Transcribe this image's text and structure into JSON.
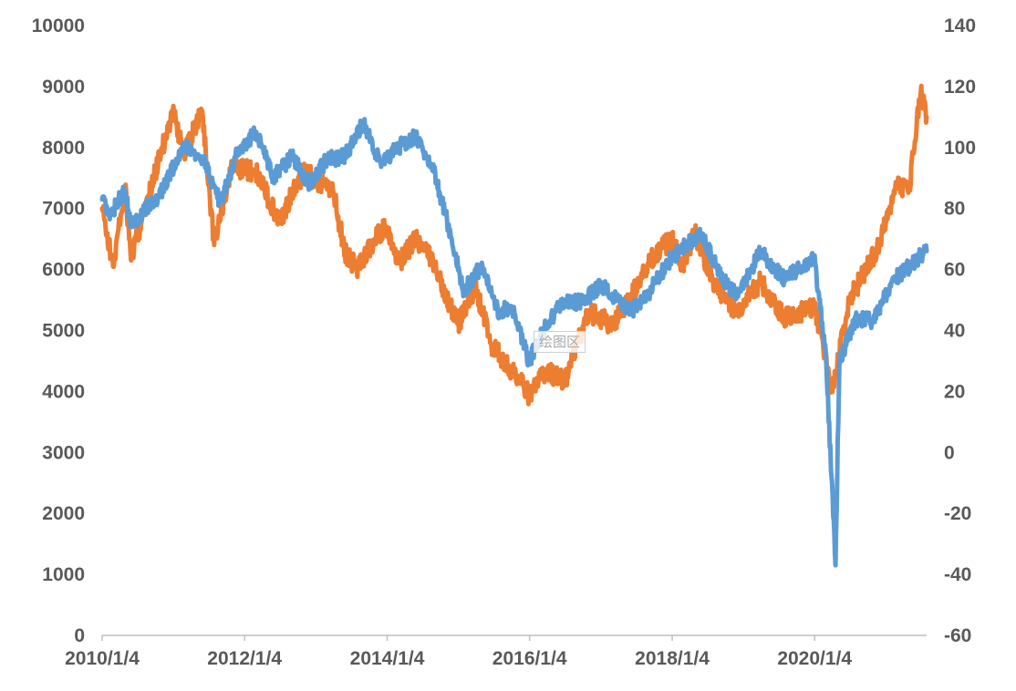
{
  "chart_data": {
    "type": "line",
    "title": "",
    "xlabel": "",
    "ylabel": "",
    "x_axis": {
      "range": [
        "2010-01-04",
        "2021-07-31"
      ],
      "tick_labels": [
        "2010/1/4",
        "2012/1/4",
        "2014/1/4",
        "2016/1/4",
        "2018/1/4",
        "2020/1/4"
      ]
    },
    "y_axis_left": {
      "min": 0,
      "max": 10000,
      "tick_labels": [
        "0",
        "1000",
        "2000",
        "3000",
        "4000",
        "5000",
        "6000",
        "7000",
        "8000",
        "9000",
        "10000"
      ]
    },
    "y_axis_right": {
      "min": -60,
      "max": 140,
      "tick_labels": [
        "-60",
        "-40",
        "-20",
        "0",
        "20",
        "40",
        "60",
        "80",
        "100",
        "120",
        "140"
      ]
    },
    "grid": false,
    "legend": "none",
    "series": [
      {
        "axis": "left",
        "color": "#ED7D31",
        "points": [
          [
            "2010-01-04",
            7000
          ],
          [
            "2010-03-01",
            6050
          ],
          [
            "2010-05-01",
            7350
          ],
          [
            "2010-06-01",
            6150
          ],
          [
            "2010-08-01",
            6900
          ],
          [
            "2010-11-01",
            7900
          ],
          [
            "2011-01-01",
            8600
          ],
          [
            "2011-03-01",
            7900
          ],
          [
            "2011-06-01",
            8600
          ],
          [
            "2011-08-01",
            6400
          ],
          [
            "2011-11-01",
            7700
          ],
          [
            "2012-03-01",
            7600
          ],
          [
            "2012-07-01",
            6800
          ],
          [
            "2012-11-01",
            7600
          ],
          [
            "2013-04-01",
            7300
          ],
          [
            "2013-06-01",
            6300
          ],
          [
            "2013-08-01",
            6000
          ],
          [
            "2013-11-01",
            6500
          ],
          [
            "2014-01-01",
            6700
          ],
          [
            "2014-03-01",
            6100
          ],
          [
            "2014-06-01",
            6500
          ],
          [
            "2014-09-01",
            6100
          ],
          [
            "2015-01-01",
            5100
          ],
          [
            "2015-04-01",
            5700
          ],
          [
            "2015-07-01",
            4700
          ],
          [
            "2015-09-01",
            4500
          ],
          [
            "2016-01-01",
            3950
          ],
          [
            "2016-04-01",
            4350
          ],
          [
            "2016-07-01",
            4150
          ],
          [
            "2016-11-01",
            5300
          ],
          [
            "2017-03-01",
            5100
          ],
          [
            "2017-06-01",
            5500
          ],
          [
            "2017-09-01",
            6100
          ],
          [
            "2018-01-01",
            6500
          ],
          [
            "2018-03-01",
            6000
          ],
          [
            "2018-05-01",
            6600
          ],
          [
            "2018-08-01",
            5800
          ],
          [
            "2018-12-01",
            5300
          ],
          [
            "2019-04-01",
            5800
          ],
          [
            "2019-08-01",
            5200
          ],
          [
            "2020-01-01",
            5400
          ],
          [
            "2020-04-01",
            4000
          ],
          [
            "2020-07-01",
            5500
          ],
          [
            "2020-12-01",
            6400
          ],
          [
            "2021-03-01",
            7400
          ],
          [
            "2021-05-01",
            7300
          ],
          [
            "2021-07-01",
            8900
          ],
          [
            "2021-07-31",
            8500
          ]
        ]
      },
      {
        "axis": "right",
        "color": "#5B9BD5",
        "points": [
          [
            "2010-01-04",
            83
          ],
          [
            "2010-02-15",
            78
          ],
          [
            "2010-05-01",
            86
          ],
          [
            "2010-06-01",
            74
          ],
          [
            "2010-08-01",
            79
          ],
          [
            "2010-11-01",
            85
          ],
          [
            "2011-03-01",
            101
          ],
          [
            "2011-06-01",
            97
          ],
          [
            "2011-09-01",
            82
          ],
          [
            "2011-12-01",
            99
          ],
          [
            "2012-03-01",
            105
          ],
          [
            "2012-06-01",
            90
          ],
          [
            "2012-09-01",
            97
          ],
          [
            "2012-12-01",
            88
          ],
          [
            "2013-03-01",
            96
          ],
          [
            "2013-06-01",
            97
          ],
          [
            "2013-09-01",
            108
          ],
          [
            "2013-12-01",
            95
          ],
          [
            "2014-03-01",
            100
          ],
          [
            "2014-06-01",
            104
          ],
          [
            "2014-09-01",
            92
          ],
          [
            "2014-12-01",
            70
          ],
          [
            "2015-02-01",
            53
          ],
          [
            "2015-05-01",
            61
          ],
          [
            "2015-08-01",
            46
          ],
          [
            "2015-10-01",
            48
          ],
          [
            "2016-01-01",
            30
          ],
          [
            "2016-04-01",
            42
          ],
          [
            "2016-07-01",
            50
          ],
          [
            "2016-10-01",
            49
          ],
          [
            "2017-01-01",
            55
          ],
          [
            "2017-06-01",
            46
          ],
          [
            "2017-09-01",
            52
          ],
          [
            "2018-01-01",
            64
          ],
          [
            "2018-06-01",
            72
          ],
          [
            "2018-09-01",
            59
          ],
          [
            "2018-12-01",
            51
          ],
          [
            "2019-04-01",
            66
          ],
          [
            "2019-08-01",
            57
          ],
          [
            "2020-01-01",
            64
          ],
          [
            "2020-03-01",
            33
          ],
          [
            "2020-04-20",
            -37
          ],
          [
            "2020-05-10",
            30
          ],
          [
            "2020-08-01",
            44
          ],
          [
            "2020-11-01",
            43
          ],
          [
            "2021-02-01",
            56
          ],
          [
            "2021-07-31",
            66
          ]
        ]
      }
    ]
  },
  "watermark": {
    "text": "绘图区"
  }
}
